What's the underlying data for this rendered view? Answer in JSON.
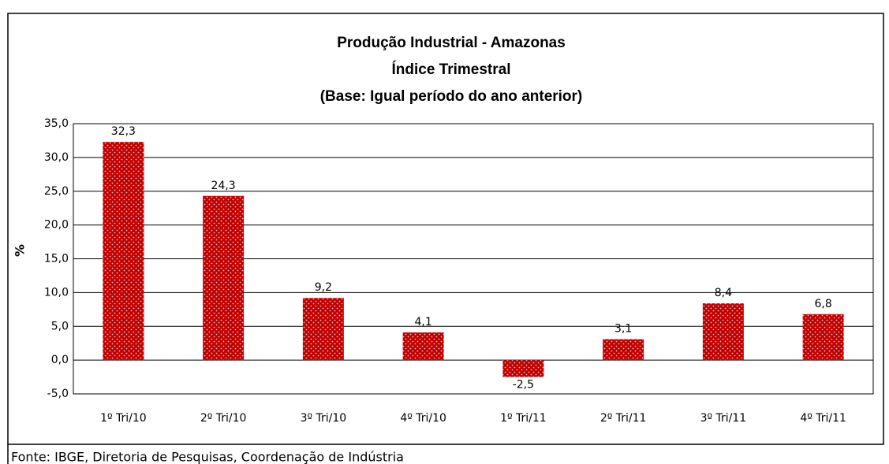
{
  "chart_data": {
    "type": "bar",
    "title": [
      "Produção Industrial - Amazonas",
      "Índice Trimestral",
      "(Base: Igual período do ano anterior)"
    ],
    "y_label": "%",
    "categories": [
      "1º Tri/10",
      "2º Tri/10",
      "3º Tri/10",
      "4º Tri/10",
      "1º Tri/11",
      "2º Tri/11",
      "3º Tri/11",
      "4º Tri/11"
    ],
    "values": [
      32.3,
      24.3,
      9.2,
      4.1,
      -2.5,
      3.1,
      8.4,
      6.8
    ],
    "value_labels": [
      "32,3",
      "24,3",
      "9,2",
      "4,1",
      "-2,5",
      "3,1",
      "8,4",
      "6,8"
    ],
    "color": "#c00000",
    "ylim": [
      -5,
      35
    ],
    "yticks": [
      {
        "value": -5,
        "label": "-5,0"
      },
      {
        "value": 0,
        "label": "0,0"
      },
      {
        "value": 5,
        "label": "5,0"
      },
      {
        "value": 10,
        "label": "10,0"
      },
      {
        "value": 15,
        "label": "15,0"
      },
      {
        "value": 20,
        "label": "20,0"
      },
      {
        "value": 25,
        "label": "25,0"
      },
      {
        "value": 30,
        "label": "30,0"
      },
      {
        "value": 35,
        "label": "35,0"
      }
    ],
    "grid": true,
    "source": "Fonte: IBGE, Diretoria de Pesquisas, Coordenação de Indústria"
  }
}
